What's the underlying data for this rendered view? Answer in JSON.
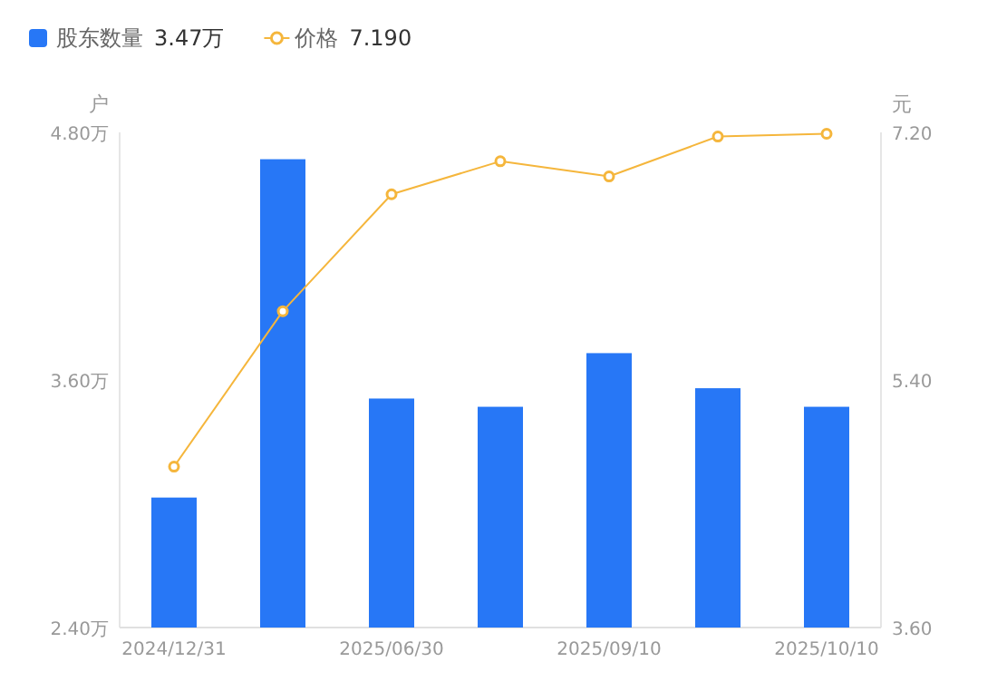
{
  "chart_data": {
    "type": "bar",
    "categories": [
      "2024/12/31",
      null,
      "2025/06/30",
      null,
      "2025/09/10",
      null,
      "2025/10/10"
    ],
    "series": [
      {
        "name": "股东数量",
        "color": "#2777f6",
        "values": [
          3.03,
          4.67,
          3.51,
          3.47,
          3.73,
          3.56,
          3.47
        ]
      },
      {
        "name": "价格",
        "type": "line",
        "axis": "y2",
        "color": "#f5b63c",
        "values": [
          4.77,
          5.9,
          6.75,
          6.99,
          6.88,
          7.17,
          7.19
        ]
      }
    ],
    "ylabel": "户",
    "y2label": "元",
    "ylim": [
      2.4,
      4.8
    ],
    "yticks": [
      {
        "value": 2.4,
        "label": "2.40万"
      },
      {
        "value": 3.6,
        "label": "3.60万"
      },
      {
        "value": 4.8,
        "label": "4.80万"
      }
    ],
    "y2lim": [
      3.6,
      7.2
    ],
    "y2ticks": [
      {
        "value": 3.6,
        "label": "3.60"
      },
      {
        "value": 5.4,
        "label": "5.40"
      },
      {
        "value": 7.2,
        "label": "7.20"
      }
    ],
    "annotations": [
      "3.47万",
      "7.190"
    ],
    "legend": "top left",
    "marker": "circle"
  }
}
